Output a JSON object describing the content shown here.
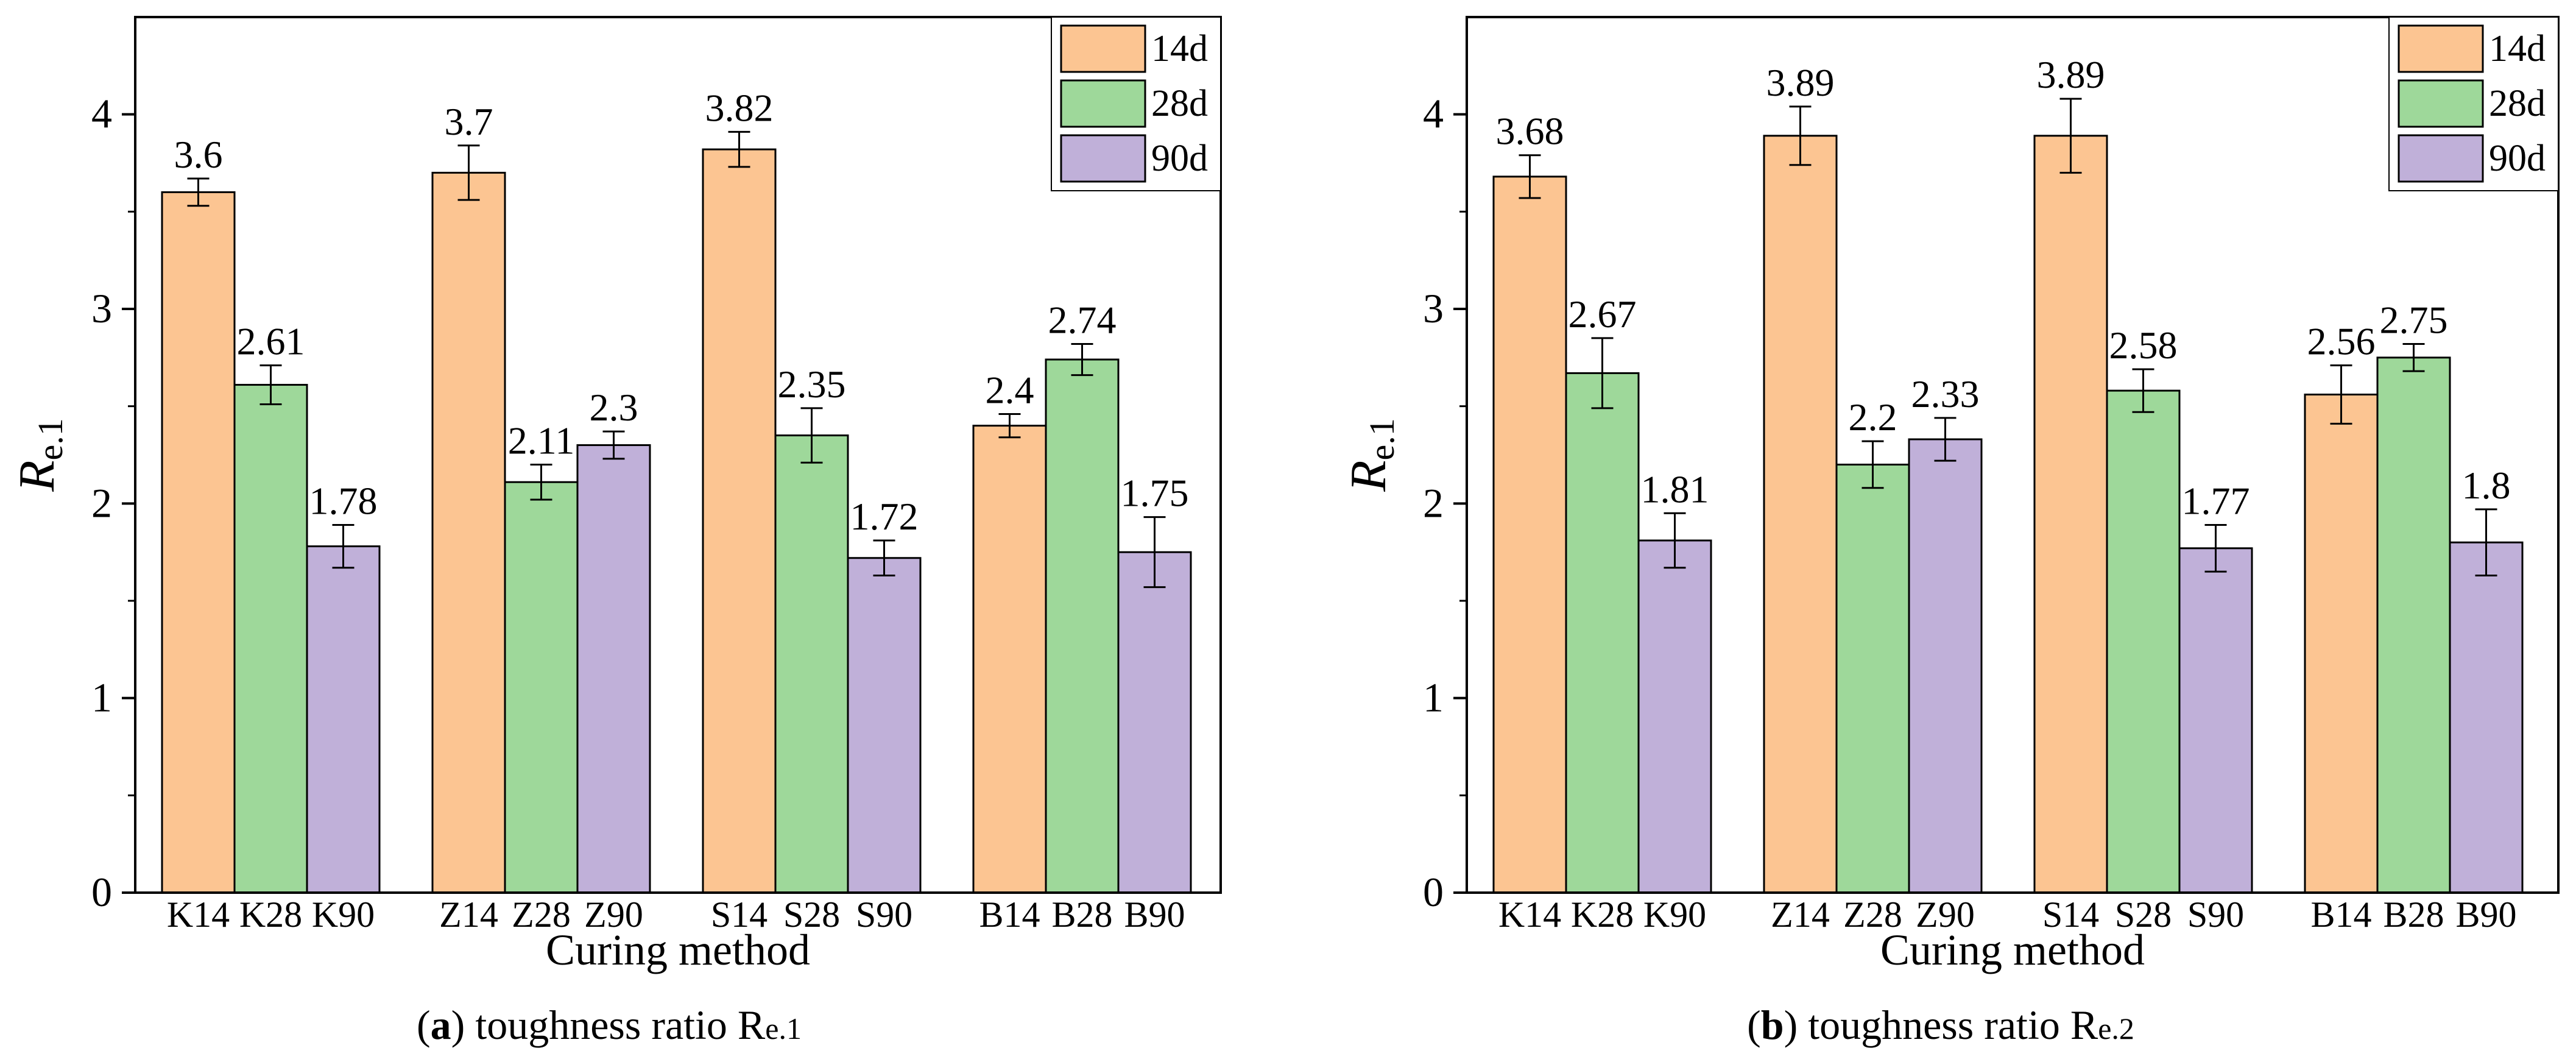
{
  "colors": {
    "14d": "#fcc592",
    "28d": "#9ed89a",
    "90d": "#c0b0d9",
    "axis": "#000000"
  },
  "chart_data": [
    {
      "type": "bar",
      "ylabel_main": "R",
      "ylabel_sub": "e.1",
      "xlabel": "Curing method",
      "caption": "(a) toughness ratio Re.1",
      "caption_letter": "a",
      "caption_text": " toughness ratio R",
      "caption_sub": "e.1",
      "ylim": [
        0,
        4.5
      ],
      "yticks": [
        "0",
        "1",
        "2",
        "3",
        "4"
      ],
      "legend": [
        "14d",
        "28d",
        "90d"
      ],
      "groups": [
        {
          "bars": [
            {
              "series": "14d",
              "label": "K14",
              "value": 3.6,
              "value_label": "3.6",
              "err": 0.07
            },
            {
              "series": "28d",
              "label": "K28",
              "value": 2.61,
              "value_label": "2.61",
              "err": 0.1
            },
            {
              "series": "90d",
              "label": "K90",
              "value": 1.78,
              "value_label": "1.78",
              "err": 0.11
            }
          ]
        },
        {
          "bars": [
            {
              "series": "14d",
              "label": "Z14",
              "value": 3.7,
              "value_label": "3.7",
              "err": 0.14
            },
            {
              "series": "28d",
              "label": "Z28",
              "value": 2.11,
              "value_label": "2.11",
              "err": 0.09
            },
            {
              "series": "90d",
              "label": "Z90",
              "value": 2.3,
              "value_label": "2.3",
              "err": 0.07
            }
          ]
        },
        {
          "bars": [
            {
              "series": "14d",
              "label": "S14",
              "value": 3.82,
              "value_label": "3.82",
              "err": 0.09
            },
            {
              "series": "28d",
              "label": "S28",
              "value": 2.35,
              "value_label": "2.35",
              "err": 0.14
            },
            {
              "series": "90d",
              "label": "S90",
              "value": 1.72,
              "value_label": "1.72",
              "err": 0.09
            }
          ]
        },
        {
          "bars": [
            {
              "series": "14d",
              "label": "B14",
              "value": 2.4,
              "value_label": "2.4",
              "err": 0.06
            },
            {
              "series": "28d",
              "label": "B28",
              "value": 2.74,
              "value_label": "2.74",
              "err": 0.08
            },
            {
              "series": "90d",
              "label": "B90",
              "value": 1.75,
              "value_label": "1.75",
              "err": 0.18
            }
          ]
        }
      ]
    },
    {
      "type": "bar",
      "ylabel_main": "R",
      "ylabel_sub": "e.1",
      "xlabel": "Curing method",
      "caption": "(b) toughness ratio Re.2",
      "caption_letter": "b",
      "caption_text": " toughness ratio R",
      "caption_sub": "e.2",
      "ylim": [
        0,
        4.5
      ],
      "yticks": [
        "0",
        "1",
        "2",
        "3",
        "4"
      ],
      "legend": [
        "14d",
        "28d",
        "90d"
      ],
      "groups": [
        {
          "bars": [
            {
              "series": "14d",
              "label": "K14",
              "value": 3.68,
              "value_label": "3.68",
              "err": 0.11
            },
            {
              "series": "28d",
              "label": "K28",
              "value": 2.67,
              "value_label": "2.67",
              "err": 0.18
            },
            {
              "series": "90d",
              "label": "K90",
              "value": 1.81,
              "value_label": "1.81",
              "err": 0.14
            }
          ]
        },
        {
          "bars": [
            {
              "series": "14d",
              "label": "Z14",
              "value": 3.89,
              "value_label": "3.89",
              "err": 0.15
            },
            {
              "series": "28d",
              "label": "Z28",
              "value": 2.2,
              "value_label": "2.2",
              "err": 0.12
            },
            {
              "series": "90d",
              "label": "Z90",
              "value": 2.33,
              "value_label": "2.33",
              "err": 0.11
            }
          ]
        },
        {
          "bars": [
            {
              "series": "14d",
              "label": "S14",
              "value": 3.89,
              "value_label": "3.89",
              "err": 0.19
            },
            {
              "series": "28d",
              "label": "S28",
              "value": 2.58,
              "value_label": "2.58",
              "err": 0.11
            },
            {
              "series": "90d",
              "label": "S90",
              "value": 1.77,
              "value_label": "1.77",
              "err": 0.12
            }
          ]
        },
        {
          "bars": [
            {
              "series": "14d",
              "label": "B14",
              "value": 2.56,
              "value_label": "2.56",
              "err": 0.15
            },
            {
              "series": "28d",
              "label": "B28",
              "value": 2.75,
              "value_label": "2.75",
              "err": 0.07
            },
            {
              "series": "90d",
              "label": "B90",
              "value": 1.8,
              "value_label": "1.8",
              "err": 0.17
            }
          ]
        }
      ]
    }
  ]
}
